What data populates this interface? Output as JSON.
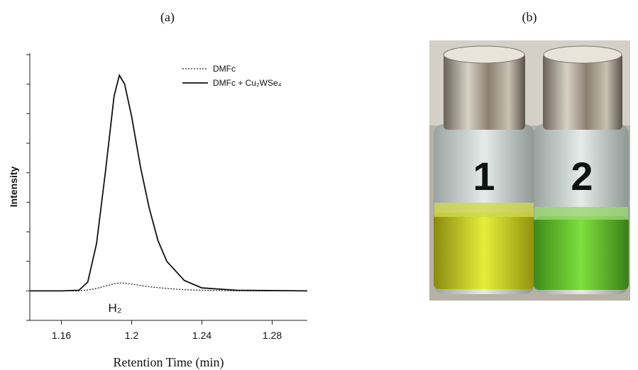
{
  "panels": [
    "(a)",
    "(b)"
  ],
  "chart_data": {
    "type": "line",
    "xlabel": "Retention Time (min)",
    "ylabel": "Intensity",
    "annotation": "H₂",
    "x": [
      1.142,
      1.16,
      1.17,
      1.175,
      1.18,
      1.185,
      1.19,
      1.193,
      1.196,
      1.2,
      1.205,
      1.21,
      1.215,
      1.22,
      1.23,
      1.24,
      1.26,
      1.3
    ],
    "series": [
      {
        "name": "DMFc",
        "color": "#222222",
        "line_style": "dotted",
        "values": [
          0,
          0,
          0,
          0.03,
          0.08,
          0.16,
          0.24,
          0.27,
          0.26,
          0.23,
          0.18,
          0.14,
          0.11,
          0.08,
          0.04,
          0.02,
          0,
          0
        ]
      },
      {
        "name": "DMFc + Cu₂WSe₄",
        "color": "#111111",
        "line_style": "solid",
        "values": [
          0,
          0,
          0.02,
          0.3,
          1.6,
          4.0,
          6.6,
          7.3,
          7.0,
          5.9,
          4.2,
          2.8,
          1.7,
          1.0,
          0.35,
          0.1,
          0.02,
          0
        ]
      }
    ],
    "xlim": [
      1.142,
      1.3
    ],
    "xticks": [
      1.16,
      1.2,
      1.24,
      1.28
    ],
    "ylim": [
      -1,
      8.05
    ],
    "yticks": [
      -1,
      0,
      1,
      2,
      3,
      4,
      5,
      6,
      7,
      8
    ]
  },
  "photo": {
    "labels": [
      "1",
      "2"
    ]
  }
}
